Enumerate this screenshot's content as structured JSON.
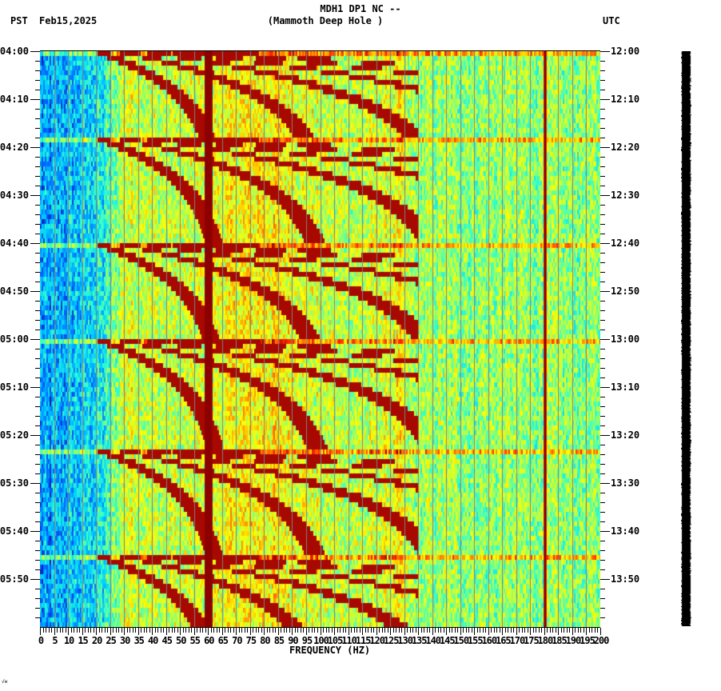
{
  "header": {
    "station_line": "MDH1 DP1 NC --",
    "location_line": "(Mammoth Deep Hole )",
    "left_timezone": "PST",
    "date": "Feb15,2025",
    "right_timezone": "UTC"
  },
  "colors": {
    "colormap": [
      "#0000aa",
      "#0066ff",
      "#00ccff",
      "#33ffcc",
      "#aaff55",
      "#ffff00",
      "#ff9900",
      "#ff2200",
      "#8b0000"
    ],
    "grid_line": "#808080",
    "axis": "#000000",
    "scale_bar": "#000000"
  },
  "chart_data": {
    "type": "heatmap",
    "title": "MDH1 DP1 NC -- (Mammoth Deep Hole )",
    "xlabel": "FREQUENCY (HZ)",
    "ylabel_left": "PST",
    "ylabel_right": "UTC",
    "xlim": [
      0,
      200
    ],
    "x_tick_step": 5,
    "x_minor_tick_step": 1,
    "x_ticks": [
      "0",
      "5",
      "10",
      "15",
      "20",
      "25",
      "30",
      "35",
      "40",
      "45",
      "50",
      "55",
      "60",
      "65",
      "70",
      "75",
      "80",
      "85",
      "90",
      "95",
      "100",
      "105",
      "110",
      "115",
      "120",
      "125",
      "130",
      "135",
      "140",
      "145",
      "150",
      "155",
      "160",
      "165",
      "170",
      "175",
      "180",
      "185",
      "190",
      "195",
      "200"
    ],
    "y_ticks_left": [
      "04:00",
      "04:10",
      "04:20",
      "04:30",
      "04:40",
      "04:50",
      "05:00",
      "05:10",
      "05:20",
      "05:30",
      "05:40",
      "05:50"
    ],
    "y_ticks_right": [
      "12:00",
      "12:10",
      "12:20",
      "12:30",
      "12:40",
      "12:50",
      "13:00",
      "13:10",
      "13:20",
      "13:30",
      "13:40",
      "13:50"
    ],
    "y_minor_tick_minutes": 2,
    "time_span_minutes": 120,
    "grid": "vertical lines every 5 Hz",
    "persistent_lines_hz": [
      60,
      180
    ],
    "sweep_events": [
      {
        "start_time": "04:00",
        "note": "bright broadband row, harmonic arcs sweeping 20-130 Hz"
      },
      {
        "start_time": "04:18",
        "note": "broadband row, arcs start ~20 Hz"
      },
      {
        "start_time": "04:40",
        "note": "broadband row, arcs start ~20 Hz"
      },
      {
        "start_time": "05:00",
        "note": "broadband row, arcs start ~20 Hz"
      },
      {
        "start_time": "05:23",
        "note": "broadband row, arcs start ~20 Hz"
      },
      {
        "start_time": "05:45",
        "note": "broadband row, arcs start ~20 Hz"
      }
    ],
    "energy_profile": "low (blue) below ~25 Hz, high (yellow/red) 25-130 Hz, moderate (green/yellow) 130-200 Hz"
  },
  "footer": {
    "corner_mark": "√ʜ"
  }
}
